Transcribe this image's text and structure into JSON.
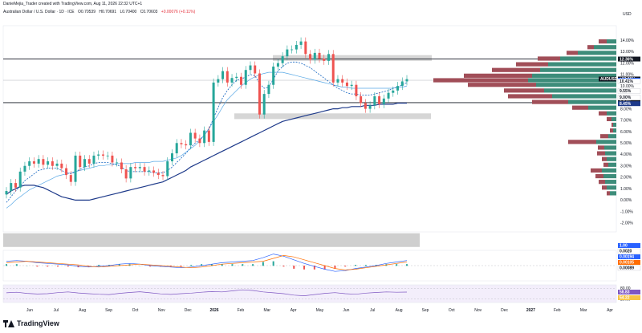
{
  "header": {
    "caption": "DanieMejia_Trader created with TradingView.com, Aug 11, 2026 22:32 UTC+1"
  },
  "instrument": {
    "title": "Australian Dollar / U.S. Dollar · 1D · ICE",
    "open": "O0.70539",
    "high": "H0.70691",
    "low": "L0.70400",
    "close": "C0.70603",
    "change": "+0.00076 (+0.11%)"
  },
  "currency_label": "USD",
  "logo_text": "TradingView",
  "colors": {
    "up": "#26a69a",
    "down": "#ef5350",
    "ma_long": "#1e3a8a",
    "ma_mid": "#1565c0",
    "ma_short": "#5aa9e6",
    "vp_green": "#3d8c7a",
    "vp_red": "#a14e58",
    "zone": "#d6d6d6"
  },
  "chart_data": {
    "type": "line",
    "title": "",
    "series": [
      {
        "name": "AUDUSD",
        "values": [
          0.8,
          1.5,
          1.1,
          2.5,
          3.0,
          3.4,
          3.2,
          3.6,
          3.1,
          3.4,
          3.0,
          3.2,
          2.8,
          2.2,
          1.6,
          3.9,
          2.9,
          3.6,
          3.2,
          3.9,
          4.0,
          3.9,
          3.9,
          3.3,
          3.3,
          2.7,
          1.9,
          2.9,
          2.8,
          2.9,
          2.5,
          2.6,
          2.4,
          2.2,
          2.1,
          3.4,
          4.1,
          5.0,
          4.9,
          4.8,
          5.9,
          5.4,
          5.0,
          6.1,
          5.1,
          10.3,
          10.6,
          11.3,
          10.3,
          10.7,
          10.8,
          10.1,
          11.4,
          11.8,
          11.1,
          7.5,
          9.3,
          10.1,
          11.7,
          12.0,
          12.6,
          13.2,
          13.2,
          13.6,
          13.9,
          12.8,
          12.3,
          12.9,
          12.4,
          12.2,
          12.8,
          10.3,
          10.6,
          10.3,
          10.0,
          10.1,
          9.1,
          8.5,
          8.0,
          8.3,
          9.1,
          8.4,
          8.9,
          9.4,
          9.6,
          10.0,
          10.4,
          10.6
        ]
      },
      {
        "name": "",
        "values": [
          -0.7,
          -0.4,
          0.0,
          0.3,
          0.6,
          0.9,
          1.1,
          1.3,
          1.5,
          1.7,
          1.9,
          2.1,
          2.2,
          2.3,
          2.4,
          2.5,
          2.6,
          2.7,
          2.8,
          2.9,
          3.0,
          3.0,
          3.1,
          3.1,
          3.2,
          3.2,
          3.2,
          3.2,
          3.3,
          3.3,
          3.3,
          3.3,
          3.4,
          3.4,
          3.4,
          3.5,
          3.6,
          3.7,
          3.9,
          4.2,
          4.5,
          4.8,
          5.2,
          5.7,
          6.3,
          6.9,
          7.5,
          8.2,
          8.8,
          9.2,
          9.6,
          10.0,
          10.3,
          10.6,
          10.8,
          11.0,
          11.1,
          11.2,
          11.2,
          11.2,
          11.2,
          11.1,
          11.0,
          10.9,
          10.8,
          10.7,
          10.6,
          10.5,
          10.4,
          10.3,
          10.2,
          10.1,
          10.0,
          9.9,
          9.9,
          9.8,
          9.8,
          9.8,
          9.8,
          9.8,
          9.8,
          9.8,
          9.8,
          9.8,
          9.8,
          9.9,
          9.9,
          10.0
        ]
      },
      {
        "name": "",
        "values": [
          -0.2,
          0.3,
          0.8,
          1.2,
          1.7,
          2.0,
          2.3,
          2.6,
          2.7,
          2.8,
          2.8,
          2.8,
          2.6,
          2.4,
          2.3,
          2.5,
          2.7,
          2.9,
          3.0,
          3.2,
          3.3,
          3.3,
          3.3,
          3.2,
          3.1,
          2.9,
          2.6,
          2.5,
          2.5,
          2.5,
          2.5,
          2.5,
          2.4,
          2.4,
          2.4,
          2.6,
          2.9,
          3.3,
          3.7,
          4.1,
          4.6,
          5.0,
          5.3,
          5.7,
          6.2,
          7.2,
          8.1,
          9.0,
          9.6,
          10.1,
          10.5,
          10.6,
          10.8,
          11.0,
          10.9,
          10.2,
          9.8,
          9.9,
          10.6,
          11.3,
          11.7,
          12.0,
          12.1,
          12.1,
          12.0,
          11.8,
          11.6,
          11.3,
          11.0,
          10.7,
          10.4,
          10.1,
          9.8,
          9.6,
          9.4,
          9.3,
          9.3,
          9.2,
          9.2,
          9.2,
          9.3,
          9.4,
          9.5,
          9.6,
          9.8,
          9.9,
          10.1,
          10.3
        ]
      },
      {
        "name": "",
        "values": [
          0.5,
          0.8,
          1.0,
          1.2,
          1.3,
          1.3,
          1.3,
          1.2,
          1.1,
          0.9,
          0.7,
          0.5,
          0.3,
          0.2,
          0.1,
          0.0,
          0.0,
          0.0,
          0.0,
          0.1,
          0.2,
          0.3,
          0.4,
          0.5,
          0.6,
          0.7,
          0.8,
          0.9,
          1.0,
          1.1,
          1.2,
          1.3,
          1.4,
          1.5,
          1.6,
          1.8,
          2.0,
          2.2,
          2.4,
          2.6,
          2.9,
          3.1,
          3.3,
          3.5,
          3.7,
          3.9,
          4.1,
          4.3,
          4.5,
          4.7,
          4.9,
          5.1,
          5.3,
          5.5,
          5.7,
          5.9,
          6.1,
          6.3,
          6.5,
          6.7,
          6.9,
          7.0,
          7.1,
          7.2,
          7.3,
          7.4,
          7.5,
          7.6,
          7.7,
          7.8,
          7.9,
          8.0,
          8.0,
          8.1,
          8.1,
          8.2,
          8.2,
          8.2,
          8.3,
          8.3,
          8.3,
          8.4,
          8.4,
          8.4,
          8.4,
          8.5,
          8.5,
          8.5
        ]
      }
    ],
    "x_labels": [
      "Jun",
      "Jul",
      "Aug",
      "Sep",
      "Oct",
      "Nov",
      "Dec",
      "2026",
      "Feb",
      "Mar",
      "Apr",
      "May",
      "Jun",
      "Jul",
      "Aug",
      "Sep",
      "Oct",
      "Nov",
      "Dec",
      "2027",
      "Feb",
      "Mar",
      "Apr"
    ],
    "y_ticks": [
      14,
      13,
      12,
      11,
      10,
      9,
      8,
      7,
      6,
      5,
      4,
      3,
      2,
      1,
      0,
      -1,
      -2
    ],
    "y_tick_labels": [
      "14.00%",
      "13.00%",
      "12.00%",
      "11.00%",
      "10.00%",
      "9.00%",
      "8.00%",
      "7.00%",
      "6.00%",
      "5.00%",
      "4.00%",
      "3.00%",
      "2.00%",
      "1.00%",
      "0.00%",
      "-1.00%",
      "-2.00%"
    ],
    "y_range": [
      -2.5,
      15
    ],
    "levels": {
      "upper_line": 12.36,
      "lower_line": 8.54,
      "upper_zone": [
        12.2,
        12.7
      ],
      "lower_zone": [
        7.1,
        7.6
      ],
      "grey_band": [
        -2.9,
        -4.1
      ]
    },
    "price_tags": [
      {
        "label": "12.36%",
        "value": 12.36,
        "style": "dark"
      },
      {
        "label": "+10.61%",
        "value": 10.61,
        "style": "dark"
      },
      {
        "label": "10.50%",
        "value": 10.5,
        "style": "blue"
      },
      {
        "label": "10.41%",
        "value": 10.41,
        "style": "light"
      },
      {
        "label": "9.55%",
        "value": 9.55,
        "style": "light"
      },
      {
        "label": "9.00%",
        "value": 9.0,
        "style": "light"
      },
      {
        "label": "8.54%",
        "value": 8.54,
        "style": "dark"
      },
      {
        "label": "8.45%",
        "value": 8.45,
        "style": "navy"
      }
    ],
    "symbol_tag": {
      "label": "AUDUSD",
      "value": 10.61
    },
    "volume_profile": [
      {
        "y": 13.9,
        "green": 12,
        "red": 10
      },
      {
        "y": 13.4,
        "green": 28,
        "red": 8
      },
      {
        "y": 12.9,
        "green": 48,
        "red": 14
      },
      {
        "y": 12.4,
        "green": 70,
        "red": 28
      },
      {
        "y": 11.9,
        "green": 85,
        "red": 40
      },
      {
        "y": 11.4,
        "green": 95,
        "red": 60
      },
      {
        "y": 10.9,
        "green": 105,
        "red": 85
      },
      {
        "y": 10.5,
        "green": 110,
        "red": 118
      },
      {
        "y": 10.1,
        "green": 100,
        "red": 85
      },
      {
        "y": 9.6,
        "green": 90,
        "red": 50
      },
      {
        "y": 9.1,
        "green": 80,
        "red": 55
      },
      {
        "y": 8.6,
        "green": 60,
        "red": 45
      },
      {
        "y": 8.1,
        "green": 35,
        "red": 20
      },
      {
        "y": 7.6,
        "green": 12,
        "red": 10
      },
      {
        "y": 7.1,
        "green": 6,
        "red": 6
      },
      {
        "y": 6.6,
        "green": 4,
        "red": 2
      },
      {
        "y": 6.1,
        "green": 4,
        "red": 4
      },
      {
        "y": 5.6,
        "green": 10,
        "red": 10
      },
      {
        "y": 5.1,
        "green": 25,
        "red": 35
      },
      {
        "y": 4.6,
        "green": 15,
        "red": 8
      },
      {
        "y": 4.1,
        "green": 14,
        "red": 10
      },
      {
        "y": 3.6,
        "green": 12,
        "red": 6
      },
      {
        "y": 3.1,
        "green": 10,
        "red": 6
      },
      {
        "y": 2.6,
        "green": 18,
        "red": 14
      },
      {
        "y": 2.1,
        "green": 16,
        "red": 10
      },
      {
        "y": 1.6,
        "green": 14,
        "red": 8
      },
      {
        "y": 1.1,
        "green": 12,
        "red": 6
      },
      {
        "y": 0.6,
        "green": 8,
        "red": 4
      }
    ],
    "macd": {
      "tags": [
        "1.00",
        "0.0020",
        "0.00194",
        "0.00105",
        "0.00089"
      ],
      "signal": [
        0.4,
        0.5,
        0.6,
        0.5,
        0.4,
        0.3,
        0.2,
        0.1,
        -0.1,
        -0.2,
        -0.1,
        0.0,
        0.1,
        0.2,
        0.1,
        0.0,
        -0.1,
        -0.2,
        -0.3,
        -0.2,
        0.0,
        0.2,
        0.3,
        0.4,
        0.5,
        0.6,
        1.0,
        1.4,
        1.2,
        0.8,
        0.4,
        0.0,
        -0.4,
        -0.6,
        -0.5,
        -0.3,
        -0.1,
        0.1,
        0.3,
        0.5
      ],
      "macd": [
        0.6,
        0.7,
        0.6,
        0.4,
        0.3,
        0.2,
        0.1,
        -0.1,
        -0.2,
        -0.1,
        0.0,
        0.2,
        0.3,
        0.2,
        0.0,
        -0.1,
        -0.2,
        -0.3,
        -0.2,
        0.0,
        0.2,
        0.4,
        0.5,
        0.6,
        0.7,
        1.1,
        1.6,
        1.3,
        0.8,
        0.3,
        -0.1,
        -0.5,
        -0.8,
        -0.7,
        -0.4,
        -0.2,
        0.0,
        0.3,
        0.5,
        0.7
      ]
    },
    "rsi": {
      "ticks": [
        "80.00",
        "20.00"
      ],
      "tags": [
        "58.83",
        "54.22"
      ],
      "values": [
        55,
        58,
        52,
        48,
        50,
        56,
        60,
        54,
        50,
        47,
        45,
        52,
        57,
        61,
        55,
        49,
        46,
        50,
        53,
        58,
        62,
        60,
        66,
        72,
        68,
        60,
        55,
        50,
        42,
        38,
        45,
        52,
        56,
        50,
        47,
        53,
        57,
        60,
        58,
        59
      ],
      "range": [
        0,
        100
      ]
    }
  }
}
